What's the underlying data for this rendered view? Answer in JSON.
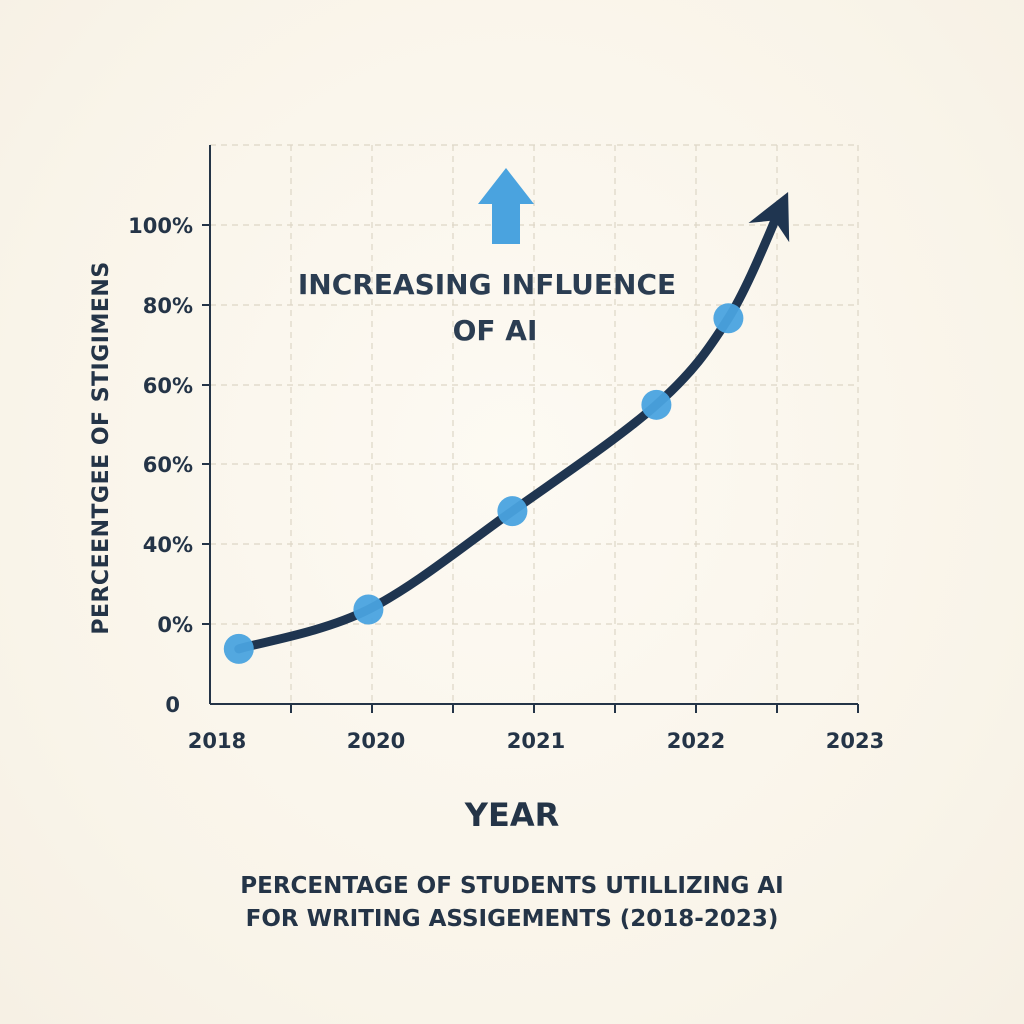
{
  "chart_data": {
    "type": "line",
    "title_lines": [
      "PERCENTAGE OF STUDENTS UTILLIZING AI",
      "FOR WRITING ASSIGEMENTS (2018-2023)"
    ],
    "xlabel": "YEAR",
    "ylabel": "PERCEENTGEE OF  STIGIMENS",
    "annotation_lines": [
      "INCREASING INFLUENCE",
      "OF AI"
    ],
    "x_tick_labels": [
      "2018",
      "2020",
      "2021",
      "2022",
      "2023"
    ],
    "y_tick_labels": [
      "0",
      "0%",
      "40%",
      "60%",
      "60%",
      "80%",
      "100%"
    ],
    "series": [
      {
        "x": [
          2018.2,
          2019.1,
          2020.1,
          2021.1,
          2021.6
        ],
        "y": [
          2,
          12,
          37,
          64,
          86
        ]
      }
    ],
    "xlim": [
      2018,
      2022.5
    ],
    "ylim": [
      -12,
      130
    ],
    "grid": true,
    "colors": {
      "curve": "#1f3550",
      "points": "#4aa3df",
      "arrow_up": "#4aa3df",
      "axis": "#243447",
      "grid": "#ddd6c6"
    }
  }
}
